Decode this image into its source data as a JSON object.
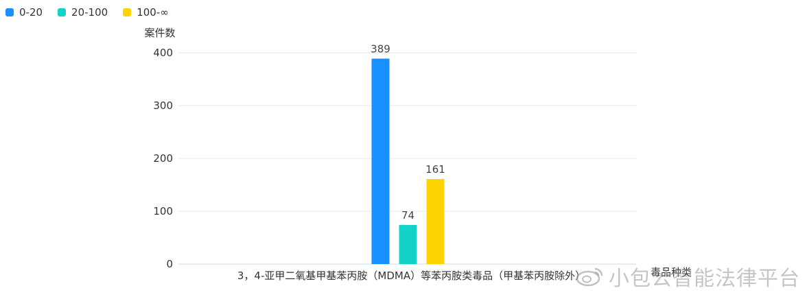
{
  "chart_data": {
    "type": "bar",
    "categories": [
      "3，4-亚甲二氧基甲基苯丙胺（MDMA）等苯丙胺类毒品（甲基苯丙胺除外）"
    ],
    "series": [
      {
        "name": "0-20",
        "values": [
          389
        ],
        "color": "#1890ff"
      },
      {
        "name": "20-100",
        "values": [
          74
        ],
        "color": "#13d3c8"
      },
      {
        "name": "100-∞",
        "values": [
          161
        ],
        "color": "#fdd400"
      }
    ],
    "ylabel": "案件数",
    "xlabel": "毒品种类",
    "ylim": [
      0,
      400
    ],
    "yticks": [
      0,
      100,
      200,
      300,
      400
    ],
    "grid": true,
    "legend_position": "top-left"
  },
  "watermark": "小包公智能法律平台"
}
